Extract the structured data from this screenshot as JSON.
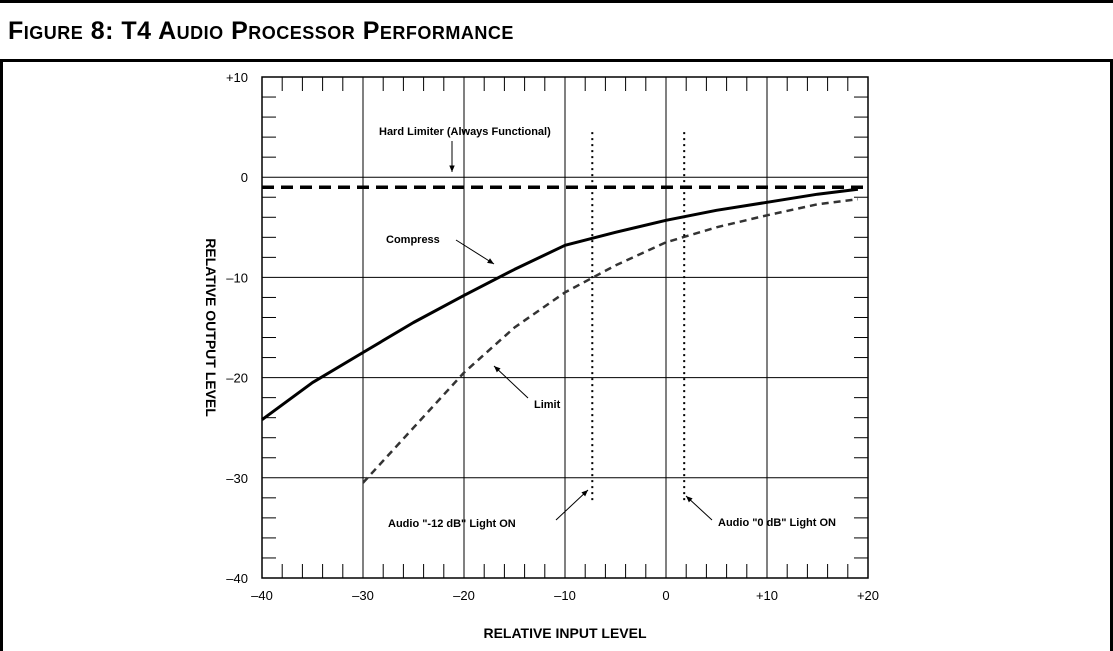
{
  "figure": {
    "title": "Figure 8: T4 Audio Processor Performance"
  },
  "chart_data": {
    "type": "line",
    "title": "Figure 8: T4 Audio Processor Performance",
    "xlabel": "RELATIVE INPUT LEVEL",
    "ylabel": "RELATIVE OUTPUT LEVEL",
    "xlim": [
      -40,
      20
    ],
    "ylim": [
      -40,
      10
    ],
    "x_ticks": [
      "–40",
      "–30",
      "–20",
      "–10",
      "0",
      "+10",
      "+20"
    ],
    "x_tick_values": [
      -40,
      -30,
      -20,
      -10,
      0,
      10,
      20
    ],
    "y_ticks": [
      "+10",
      "0",
      "–10",
      "–20",
      "–30",
      "–40"
    ],
    "y_tick_values": [
      10,
      0,
      -10,
      -20,
      -30,
      -40
    ],
    "grid": true,
    "series": [
      {
        "name": "Hard Limiter (Always Functional)",
        "style": "heavy-dashed",
        "x": [
          -40,
          20
        ],
        "y": [
          -1,
          -1
        ]
      },
      {
        "name": "Compress",
        "style": "solid",
        "x": [
          -40,
          -35,
          -30,
          -25,
          -20,
          -15,
          -10,
          -5,
          0,
          5,
          10,
          15,
          19
        ],
        "y": [
          -24.2,
          -20.5,
          -17.5,
          -14.5,
          -11.8,
          -9.2,
          -6.8,
          -5.5,
          -4.3,
          -3.3,
          -2.5,
          -1.7,
          -1.2
        ]
      },
      {
        "name": "Limit",
        "style": "dashed",
        "x": [
          -30,
          -25,
          -20,
          -15,
          -10,
          -5,
          0,
          5,
          10,
          15,
          19
        ],
        "y": [
          -30.5,
          -25.0,
          -19.5,
          -15.0,
          -11.5,
          -8.8,
          -6.5,
          -5.0,
          -3.8,
          -2.7,
          -2.2
        ]
      },
      {
        "name": "Audio \"-12 dB\" Light ON",
        "style": "dotted-vertical",
        "x": [
          -7.3,
          -7.3
        ],
        "y": [
          4.5,
          -32.5
        ]
      },
      {
        "name": "Audio \"0 dB\" Light ON",
        "style": "dotted-vertical",
        "x": [
          1.8,
          1.8
        ],
        "y": [
          4.5,
          -32.5
        ]
      }
    ],
    "annotations": {
      "hard_limiter": "Hard Limiter (Always Functional)",
      "compress": "Compress",
      "limit": "Limit",
      "light_12": "Audio \"-12 dB\" Light ON",
      "light_0": "Audio \"0 dB\" Light ON"
    },
    "colors": {
      "line": "#000000",
      "limit_dashed": "#333333"
    }
  }
}
